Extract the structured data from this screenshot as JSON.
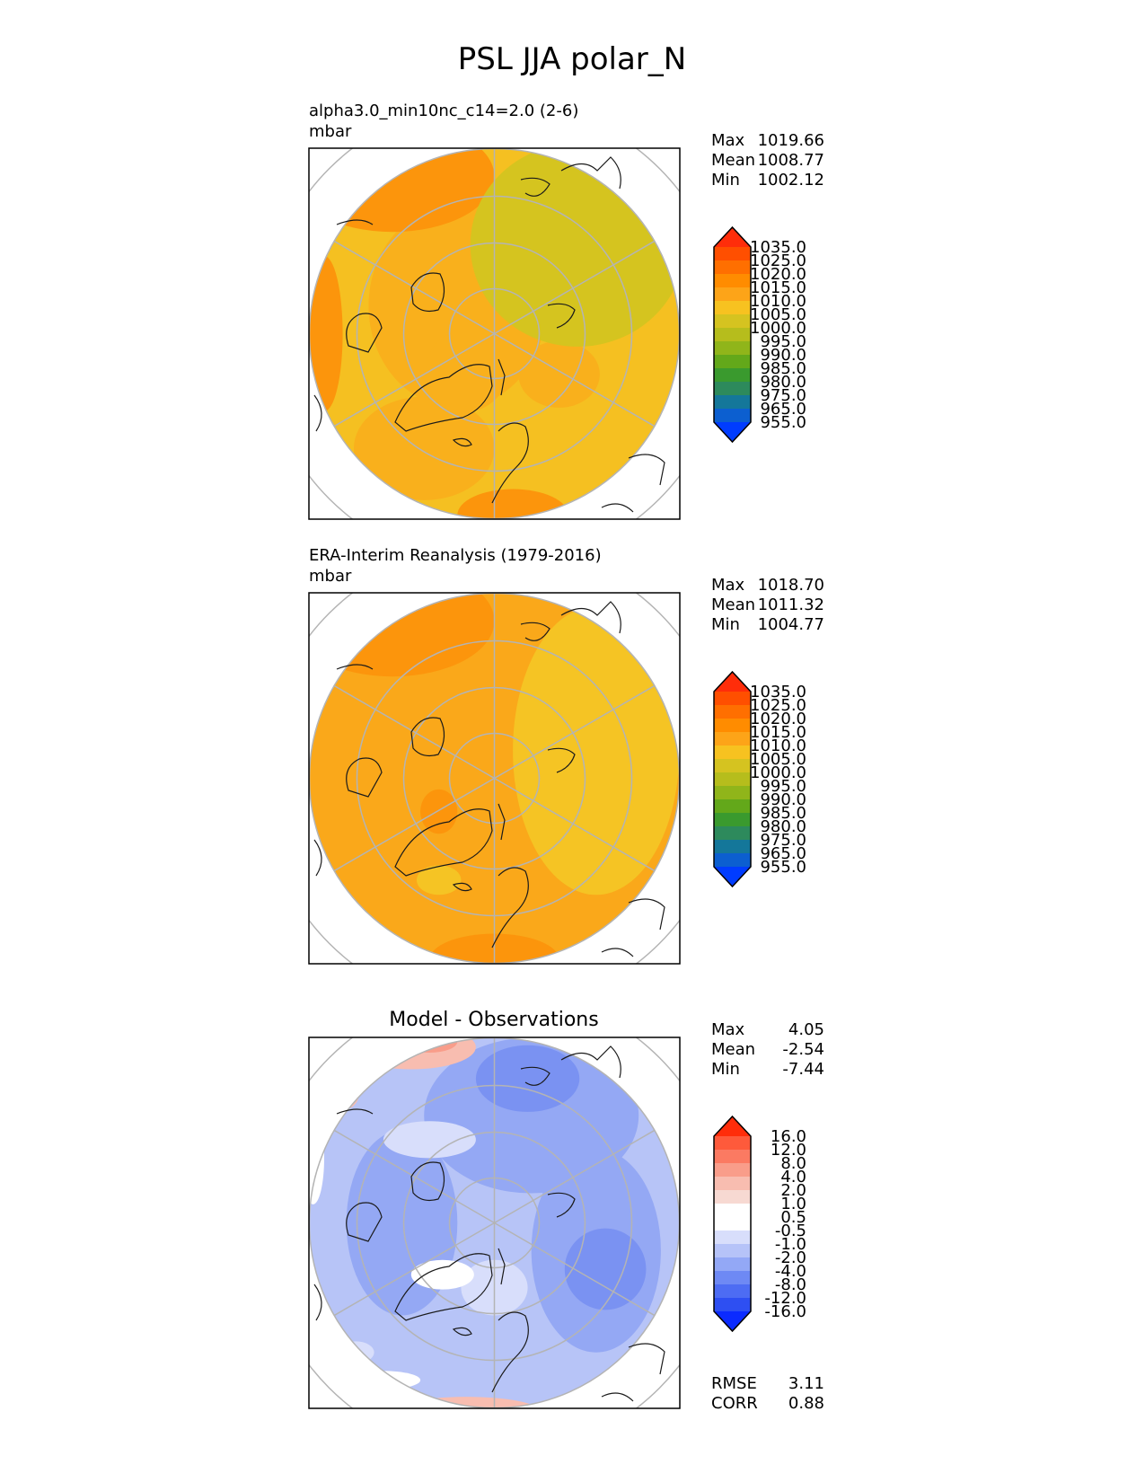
{
  "figure": {
    "title": "PSL JJA polar_N"
  },
  "chart_data": [
    {
      "type": "heatmap",
      "projection": "north-polar-stereographic",
      "title": "alpha3.0_min10nc_c14=2.0 (2-6)",
      "units": "mbar",
      "stats": {
        "max_label": "Max",
        "max": "1019.66",
        "mean_label": "Mean",
        "mean": "1008.77",
        "min_label": "Min",
        "min": "1002.12"
      },
      "colorbar": {
        "levels": [
          "1035.0",
          "1025.0",
          "1020.0",
          "1015.0",
          "1010.0",
          "1005.0",
          "1000.0",
          "995.0",
          "990.0",
          "985.0",
          "980.0",
          "975.0",
          "965.0",
          "955.0"
        ],
        "colors": [
          "#ff2d0a",
          "#ff4f00",
          "#ff6f00",
          "#ff8c00",
          "#fda418",
          "#f7c220",
          "#d5c320",
          "#b6bd1c",
          "#90b51a",
          "#63a81a",
          "#3a9a2e",
          "#2d8a5c",
          "#14779a",
          "#0c5fd0",
          "#003cff"
        ]
      },
      "field": {
        "base": "#f5c021",
        "patches": [
          {
            "color": "#f9b01c",
            "blobs": [
              [
                -0.2,
                0.15,
                0.48,
                0.55
              ],
              [
                -0.38,
                -0.62,
                0.38,
                0.28
              ],
              [
                -0.15,
                -0.2,
                0.22,
                0.22
              ],
              [
                0.35,
                -0.22,
                0.22,
                0.18
              ]
            ]
          },
          {
            "color": "#fc950c",
            "blobs": [
              [
                -0.55,
                0.85,
                0.55,
                0.3
              ],
              [
                0.1,
                -0.98,
                0.3,
                0.14
              ],
              [
                -0.92,
                0.0,
                0.1,
                0.42
              ]
            ]
          },
          {
            "color": "#d5c41f",
            "blobs": [
              [
                0.45,
                0.48,
                0.58,
                0.55
              ]
            ]
          }
        ]
      }
    },
    {
      "type": "heatmap",
      "projection": "north-polar-stereographic",
      "title": "ERA-Interim Reanalysis (1979-2016)",
      "units": "mbar",
      "stats": {
        "max_label": "Max",
        "max": "1018.70",
        "mean_label": "Mean",
        "mean": "1011.32",
        "min_label": "Min",
        "min": "1004.77"
      },
      "colorbar": {
        "levels": [
          "1035.0",
          "1025.0",
          "1020.0",
          "1015.0",
          "1010.0",
          "1005.0",
          "1000.0",
          "995.0",
          "990.0",
          "985.0",
          "980.0",
          "975.0",
          "965.0",
          "955.0"
        ],
        "colors": [
          "#ff2d0a",
          "#ff4f00",
          "#ff6f00",
          "#ff8c00",
          "#fda418",
          "#f7c220",
          "#d5c320",
          "#b6bd1c",
          "#90b51a",
          "#63a81a",
          "#3a9a2e",
          "#2d8a5c",
          "#14779a",
          "#0c5fd0",
          "#003cff"
        ]
      },
      "field": {
        "base": "#faa81a",
        "patches": [
          {
            "color": "#f5c424",
            "blobs": [
              [
                0.55,
                0.15,
                0.45,
                0.78
              ],
              [
                -0.3,
                -0.55,
                0.12,
                0.08
              ]
            ]
          },
          {
            "color": "#fc950c",
            "blobs": [
              [
                -0.55,
                0.85,
                0.55,
                0.3
              ],
              [
                -0.3,
                -0.18,
                0.1,
                0.12
              ],
              [
                0.0,
                -0.98,
                0.35,
                0.14
              ]
            ]
          }
        ]
      }
    },
    {
      "type": "heatmap",
      "projection": "north-polar-stereographic",
      "title": "Model - Observations",
      "units": "",
      "stats": {
        "max_label": "Max",
        "max": "4.05",
        "mean_label": "Mean",
        "mean": "-2.54",
        "min_label": "Min",
        "min": "-7.44"
      },
      "extra_stats": {
        "rmse_label": "RMSE",
        "rmse": "3.11",
        "corr_label": "CORR",
        "corr": "0.88"
      },
      "colorbar": {
        "levels": [
          "16.0",
          "12.0",
          "8.0",
          "4.0",
          "2.0",
          "1.0",
          "0.5",
          "-0.5",
          "-1.0",
          "-2.0",
          "-4.0",
          "-8.0",
          "-12.0",
          "-16.0"
        ],
        "colors": [
          "#ff2d0a",
          "#fe5a3b",
          "#fb7a62",
          "#f99d8a",
          "#f8bdb0",
          "#f7d9d2",
          "#ffffff",
          "#ffffff",
          "#d8defb",
          "#b6c3f8",
          "#93a8f6",
          "#6e89f4",
          "#4d6cf3",
          "#2e4ff2",
          "#0b2bff"
        ]
      },
      "field": {
        "base": "#b7c4f7",
        "patches": [
          {
            "color": "#94a8f4",
            "blobs": [
              [
                0.2,
                0.58,
                0.58,
                0.42
              ],
              [
                0.55,
                -0.15,
                0.35,
                0.55
              ],
              [
                -0.5,
                0.0,
                0.3,
                0.5
              ]
            ]
          },
          {
            "color": "#7a92f2",
            "blobs": [
              [
                0.18,
                0.78,
                0.28,
                0.18
              ],
              [
                0.6,
                -0.25,
                0.22,
                0.22
              ]
            ]
          },
          {
            "color": "#d8defb",
            "blobs": [
              [
                0.0,
                -0.35,
                0.18,
                0.15
              ],
              [
                -0.35,
                0.45,
                0.25,
                0.1
              ],
              [
                -0.75,
                -0.7,
                0.1,
                0.06
              ]
            ]
          },
          {
            "color": "#ffffff",
            "blobs": [
              [
                -0.28,
                -0.28,
                0.17,
                0.08
              ],
              [
                -0.98,
                0.35,
                0.06,
                0.25
              ],
              [
                -0.6,
                -0.85,
                0.2,
                0.05
              ]
            ]
          },
          {
            "color": "#f8bdb0",
            "blobs": [
              [
                -0.45,
                0.95,
                0.35,
                0.12
              ],
              [
                -0.85,
                0.7,
                0.12,
                0.1
              ],
              [
                -0.15,
                -1.02,
                0.4,
                0.08
              ]
            ]
          },
          {
            "color": "#f99d8a",
            "blobs": [
              [
                -0.35,
                0.98,
                0.15,
                0.06
              ],
              [
                -0.88,
                0.72,
                0.05,
                0.04
              ]
            ]
          }
        ]
      }
    }
  ]
}
